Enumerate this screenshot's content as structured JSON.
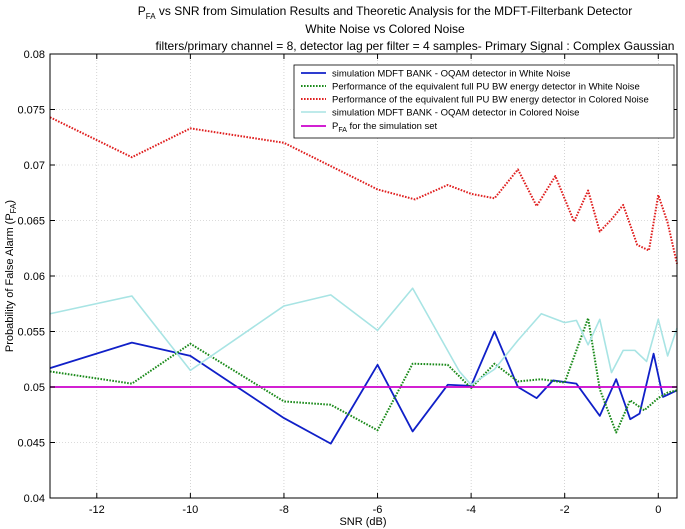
{
  "chart_data": {
    "type": "line",
    "title": {
      "line1_main": "P",
      "line1_sub": "FA",
      "line1_rest": " vs SNR  from Simulation Results and Theoretic Analysis for the MDFT-Filterbank Detector",
      "line2": "White Noise vs Colored Noise",
      "line3": "filters/primary channel = 8, detector lag per filter = 4 samples- Primary Signal : Complex Gaussian"
    },
    "xlabel": "SNR (dB)",
    "ylabel": {
      "main": "Probability of False Alarm (P",
      "sub": "FA",
      "end": ")"
    },
    "xlim": [
      -13,
      0.4
    ],
    "ylim": [
      0.04,
      0.08
    ],
    "xticks": [
      -12,
      -10,
      -8,
      -6,
      -4,
      -2,
      0
    ],
    "xtick_labels": [
      "-12",
      "-10",
      "-8",
      "-6",
      "-4",
      "-2",
      "0"
    ],
    "yticks": [
      0.04,
      0.045,
      0.05,
      0.055,
      0.06,
      0.065,
      0.07,
      0.075,
      0.08
    ],
    "ytick_labels": [
      "0.04",
      "0.045",
      "0.05",
      "0.055",
      "0.06",
      "0.065",
      "0.07",
      "0.075",
      "0.08"
    ],
    "grid": true,
    "legend_position": "top-right",
    "series": [
      {
        "name": "simulation MDFT BANK - OQAM detector in White Noise",
        "color": "#1020c8",
        "style": "solid",
        "x": [
          -13,
          -11.25,
          -10,
          -8,
          -7,
          -6,
          -5.25,
          -4.5,
          -4,
          -3.5,
          -3,
          -2.6,
          -2.25,
          -1.75,
          -1.25,
          -0.9,
          -0.6,
          -0.4,
          -0.1,
          0.1,
          0.2,
          0.4
        ],
        "y": [
          0.0517,
          0.054,
          0.0528,
          0.0472,
          0.0449,
          0.052,
          0.046,
          0.0502,
          0.0501,
          0.055,
          0.05,
          0.049,
          0.0506,
          0.0503,
          0.0474,
          0.0507,
          0.0471,
          0.0476,
          0.053,
          0.0491,
          0.0493,
          0.0497
        ]
      },
      {
        "name": "Performance of the equivalent full PU BW energy detector in White Noise",
        "color": "#1a8a1a",
        "style": "dotted",
        "x": [
          -13,
          -11.25,
          -10,
          -8,
          -7,
          -6,
          -5.25,
          -4.5,
          -4,
          -3.5,
          -3,
          -2.5,
          -2,
          -1.5,
          -1.25,
          -0.9,
          -0.6,
          -0.3,
          0,
          0.2,
          0.4
        ],
        "y": [
          0.0514,
          0.0503,
          0.0539,
          0.0487,
          0.0484,
          0.0461,
          0.0521,
          0.052,
          0.0499,
          0.0521,
          0.0505,
          0.0507,
          0.0504,
          0.0562,
          0.0498,
          0.0459,
          0.0488,
          0.0479,
          0.049,
          0.0495,
          0.0497
        ]
      },
      {
        "name": "Performance of the equivalent full PU BW energy detector in Colored Noise",
        "color": "#e02020",
        "style": "dotted",
        "x": [
          -13,
          -11.25,
          -10,
          -8,
          -6,
          -5.2,
          -4.5,
          -4,
          -3.5,
          -3,
          -2.6,
          -2.2,
          -1.8,
          -1.5,
          -1.25,
          -1,
          -0.75,
          -0.45,
          -0.2,
          0,
          0.2,
          0.4
        ],
        "y": [
          0.0743,
          0.0707,
          0.0733,
          0.072,
          0.0678,
          0.0669,
          0.0682,
          0.0674,
          0.067,
          0.0696,
          0.0663,
          0.069,
          0.0649,
          0.0677,
          0.064,
          0.0651,
          0.0664,
          0.0628,
          0.0623,
          0.0673,
          0.0648,
          0.0611
        ]
      },
      {
        "name": "simulation MDFT BANK - OQAM detector in Colored Noise",
        "color": "#a8e4e4",
        "style": "solid",
        "x": [
          -13,
          -11.25,
          -10,
          -8,
          -7,
          -6,
          -5.25,
          -4.25,
          -4,
          -3.5,
          -3,
          -2.5,
          -2,
          -1.75,
          -1.5,
          -1.25,
          -1,
          -0.75,
          -0.5,
          -0.25,
          0,
          0.2,
          0.4
        ],
        "y": [
          0.0566,
          0.0582,
          0.0515,
          0.0573,
          0.0583,
          0.0551,
          0.0589,
          0.0514,
          0.0502,
          0.0516,
          0.0542,
          0.0566,
          0.0558,
          0.056,
          0.0538,
          0.0561,
          0.0513,
          0.0533,
          0.0533,
          0.0523,
          0.0561,
          0.0528,
          0.0553
        ]
      },
      {
        "name_main": "P",
        "name_sub": "FA",
        "name_rest": " for the simulation set",
        "color": "#cc00cc",
        "style": "solid",
        "x": [
          -13,
          0.4
        ],
        "y": [
          0.05,
          0.05
        ]
      }
    ]
  }
}
